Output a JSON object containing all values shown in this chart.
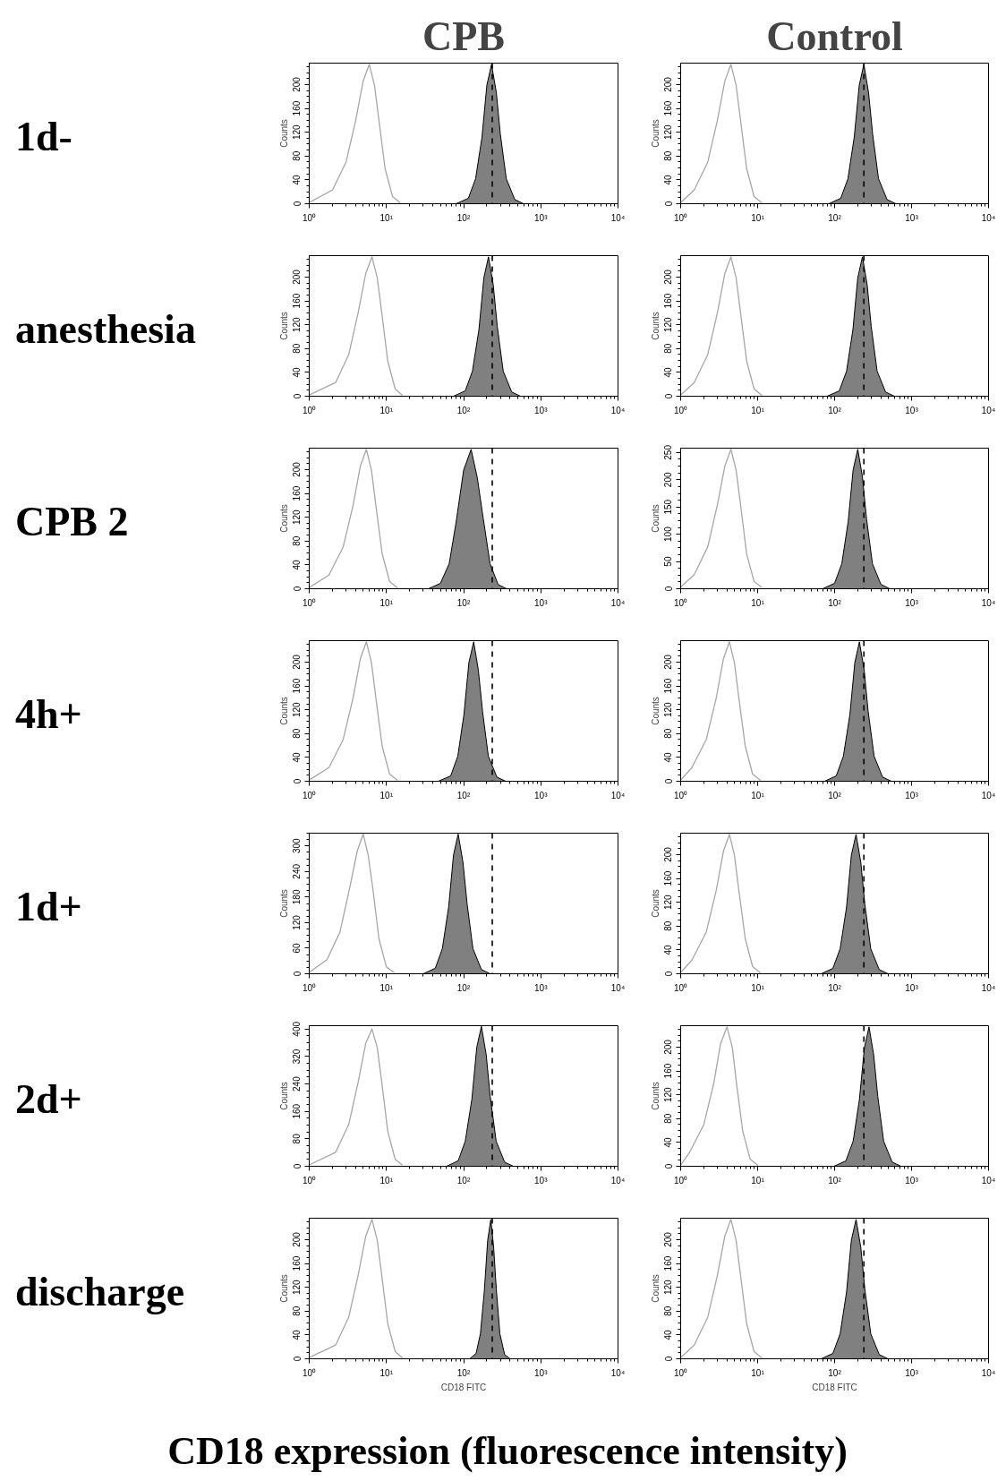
{
  "chart_data": [
    {
      "type": "area",
      "title": "CPB",
      "annotations": [
        "1d-"
      ],
      "ylabel": "Counts",
      "log": "x",
      "grid": false,
      "xlim": [
        1,
        10000
      ],
      "ylim": [
        0,
        236
      ],
      "xticks": [
        {
          "value": 1,
          "label": "10⁰"
        },
        {
          "value": 10,
          "label": "10¹"
        },
        {
          "value": 100,
          "label": "10²"
        },
        {
          "value": 1000,
          "label": "10³"
        },
        {
          "value": 10000,
          "label": "10⁴"
        }
      ],
      "yticks": [
        0,
        40,
        80,
        120,
        160,
        200
      ],
      "ref_lines": [
        {
          "axis": "x",
          "value": 235,
          "line_style": "dashed",
          "color": "#000000"
        }
      ],
      "series": [
        {
          "type": "line",
          "color": "#a6a6a6",
          "x": [
            1,
            2,
            3,
            4,
            5,
            6,
            7,
            8,
            9.6,
            12,
            15
          ],
          "values": [
            2,
            23,
            70,
            140,
            206,
            234,
            199,
            140,
            59,
            12,
            2
          ]
        },
        {
          "color": "#808080",
          "x": [
            80,
            115,
            143,
            173,
            200,
            230,
            265,
            299,
            357,
            460,
            598
          ],
          "values": [
            0,
            9,
            42,
            112,
            199,
            234,
            187,
            117,
            42,
            7,
            0
          ]
        }
      ]
    },
    {
      "type": "area",
      "title": "Control",
      "ylabel": "Counts",
      "log": "x",
      "grid": false,
      "xlim": [
        1,
        10000
      ],
      "ylim": [
        0,
        236
      ],
      "xticks": [
        {
          "value": 1,
          "label": "10⁰"
        },
        {
          "value": 10,
          "label": "10¹"
        },
        {
          "value": 100,
          "label": "10²"
        },
        {
          "value": 1000,
          "label": "10³"
        },
        {
          "value": 10000,
          "label": "10⁴"
        }
      ],
      "yticks": [
        0,
        40,
        80,
        120,
        160,
        200
      ],
      "ref_lines": [
        {
          "axis": "x",
          "value": 240,
          "line_style": "dashed",
          "color": "#000000"
        }
      ],
      "series": [
        {
          "type": "line",
          "color": "#a6a6a6",
          "x": [
            1,
            1.5,
            2.25,
            3,
            3.75,
            4.5,
            5.25,
            6,
            7.2,
            9,
            11.25
          ],
          "values": [
            2,
            23,
            70,
            140,
            206,
            234,
            199,
            140,
            59,
            12,
            2
          ]
        },
        {
          "color": "#808080",
          "x": [
            84,
            120,
            149,
            180,
            209,
            240,
            276,
            312,
            372,
            480,
            624
          ],
          "values": [
            0,
            9,
            42,
            112,
            199,
            234,
            187,
            117,
            42,
            7,
            0
          ]
        }
      ]
    },
    {
      "type": "area",
      "annotations": [
        "anesthesia"
      ],
      "ylabel": "Counts",
      "log": "x",
      "grid": false,
      "xlim": [
        1,
        10000
      ],
      "ylim": [
        0,
        236
      ],
      "xticks": [
        {
          "value": 1,
          "label": "10⁰"
        },
        {
          "value": 10,
          "label": "10¹"
        },
        {
          "value": 100,
          "label": "10²"
        },
        {
          "value": 1000,
          "label": "10³"
        },
        {
          "value": 10000,
          "label": "10⁴"
        }
      ],
      "yticks": [
        0,
        40,
        80,
        120,
        160,
        200
      ],
      "ref_lines": [
        {
          "axis": "x",
          "value": 235,
          "line_style": "dashed",
          "color": "#000000"
        }
      ],
      "series": [
        {
          "type": "line",
          "color": "#a6a6a6",
          "x": [
            1,
            2.2,
            3.25,
            4.3,
            5.4,
            6.5,
            7.6,
            8.7,
            10.4,
            13,
            16
          ],
          "values": [
            2,
            23,
            70,
            140,
            206,
            234,
            199,
            140,
            59,
            12,
            2
          ]
        },
        {
          "color": "#808080",
          "x": [
            74,
            105,
            130,
            158,
            183,
            210,
            242,
            273,
            326,
            420,
            546
          ],
          "values": [
            0,
            9,
            42,
            112,
            199,
            234,
            187,
            117,
            42,
            7,
            0
          ]
        }
      ]
    },
    {
      "type": "area",
      "ylabel": "Counts",
      "log": "x",
      "grid": false,
      "xlim": [
        1,
        10000
      ],
      "ylim": [
        0,
        236
      ],
      "xticks": [
        {
          "value": 1,
          "label": "10⁰"
        },
        {
          "value": 10,
          "label": "10¹"
        },
        {
          "value": 100,
          "label": "10²"
        },
        {
          "value": 1000,
          "label": "10³"
        },
        {
          "value": 10000,
          "label": "10⁴"
        }
      ],
      "yticks": [
        0,
        40,
        80,
        120,
        160,
        200
      ],
      "ref_lines": [
        {
          "axis": "x",
          "value": 240,
          "line_style": "dashed",
          "color": "#000000"
        }
      ],
      "series": [
        {
          "type": "line",
          "color": "#a6a6a6",
          "x": [
            1,
            1.5,
            2.25,
            3,
            3.75,
            4.5,
            5.25,
            6,
            7.2,
            9,
            11.25
          ],
          "values": [
            2,
            23,
            70,
            140,
            206,
            234,
            199,
            140,
            59,
            12,
            2
          ]
        },
        {
          "color": "#808080",
          "x": [
            80,
            115,
            143,
            173,
            200,
            230,
            265,
            299,
            357,
            460,
            598
          ],
          "values": [
            0,
            9,
            42,
            112,
            199,
            234,
            187,
            117,
            42,
            7,
            0
          ]
        }
      ]
    },
    {
      "type": "area",
      "annotations": [
        "CPB 2"
      ],
      "ylabel": "Counts",
      "log": "x",
      "grid": false,
      "xlim": [
        1,
        10000
      ],
      "ylim": [
        0,
        236
      ],
      "xticks": [
        {
          "value": 1,
          "label": "10⁰"
        },
        {
          "value": 10,
          "label": "10¹"
        },
        {
          "value": 100,
          "label": "10²"
        },
        {
          "value": 1000,
          "label": "10³"
        },
        {
          "value": 10000,
          "label": "10⁴"
        }
      ],
      "yticks": [
        0,
        40,
        80,
        120,
        160,
        200
      ],
      "ref_lines": [
        {
          "axis": "x",
          "value": 235,
          "line_style": "dashed",
          "color": "#000000"
        }
      ],
      "series": [
        {
          "type": "line",
          "color": "#a6a6a6",
          "x": [
            1,
            1.8,
            2.75,
            3.7,
            4.6,
            5.5,
            6.4,
            7.3,
            8.8,
            11,
            13.8
          ],
          "values": [
            2,
            23,
            70,
            140,
            206,
            234,
            199,
            140,
            59,
            12,
            2
          ]
        },
        {
          "color": "#808080",
          "x": [
            35,
            50,
            65,
            80,
            100,
            125,
            150,
            180,
            220,
            280,
            360
          ],
          "values": [
            0,
            9,
            42,
            112,
            199,
            234,
            187,
            117,
            42,
            7,
            0
          ]
        }
      ]
    },
    {
      "type": "area",
      "ylabel": "Counts",
      "log": "x",
      "grid": false,
      "xlim": [
        1,
        10000
      ],
      "ylim": [
        0,
        258
      ],
      "xticks": [
        {
          "value": 1,
          "label": "10⁰"
        },
        {
          "value": 10,
          "label": "10¹"
        },
        {
          "value": 100,
          "label": "10²"
        },
        {
          "value": 1000,
          "label": "10³"
        },
        {
          "value": 10000,
          "label": "10⁴"
        }
      ],
      "yticks": [
        0,
        50,
        100,
        150,
        200,
        250
      ],
      "ref_lines": [
        {
          "axis": "x",
          "value": 240,
          "line_style": "dashed",
          "color": "#000000"
        }
      ],
      "series": [
        {
          "type": "line",
          "color": "#a6a6a6",
          "x": [
            1,
            1.5,
            2.25,
            3,
            3.75,
            4.5,
            5.25,
            6,
            7.2,
            9,
            11.25
          ],
          "values": [
            3,
            26,
            77,
            154,
            225,
            256,
            218,
            154,
            64,
            13,
            3
          ]
        },
        {
          "color": "#808080",
          "x": [
            70,
            100,
            124,
            150,
            174,
            200,
            230,
            260,
            310,
            400,
            520
          ],
          "values": [
            0,
            10,
            46,
            123,
            218,
            256,
            205,
            128,
            46,
            8,
            0
          ]
        }
      ]
    },
    {
      "type": "area",
      "annotations": [
        "4h+"
      ],
      "ylabel": "Counts",
      "log": "x",
      "grid": false,
      "xlim": [
        1,
        10000
      ],
      "ylim": [
        0,
        236
      ],
      "xticks": [
        {
          "value": 1,
          "label": "10⁰"
        },
        {
          "value": 10,
          "label": "10¹"
        },
        {
          "value": 100,
          "label": "10²"
        },
        {
          "value": 1000,
          "label": "10³"
        },
        {
          "value": 10000,
          "label": "10⁴"
        }
      ],
      "yticks": [
        0,
        40,
        80,
        120,
        160,
        200
      ],
      "ref_lines": [
        {
          "axis": "x",
          "value": 235,
          "line_style": "dashed",
          "color": "#000000"
        }
      ],
      "series": [
        {
          "type": "line",
          "color": "#a6a6a6",
          "x": [
            1,
            1.8,
            2.75,
            3.7,
            4.6,
            5.5,
            6.4,
            7.3,
            8.8,
            11,
            13.8
          ],
          "values": [
            2,
            23,
            70,
            140,
            206,
            234,
            199,
            140,
            59,
            12,
            2
          ]
        },
        {
          "color": "#808080",
          "x": [
            47,
            68,
            84,
            101,
            117,
            135,
            155,
            176,
            209,
            270,
            351
          ],
          "values": [
            0,
            9,
            42,
            112,
            199,
            234,
            187,
            117,
            42,
            7,
            0
          ]
        }
      ]
    },
    {
      "type": "area",
      "ylabel": "Counts",
      "log": "x",
      "grid": false,
      "xlim": [
        1,
        10000
      ],
      "ylim": [
        0,
        236
      ],
      "xticks": [
        {
          "value": 1,
          "label": "10⁰"
        },
        {
          "value": 10,
          "label": "10¹"
        },
        {
          "value": 100,
          "label": "10²"
        },
        {
          "value": 1000,
          "label": "10³"
        },
        {
          "value": 10000,
          "label": "10⁴"
        }
      ],
      "yticks": [
        0,
        40,
        80,
        120,
        160,
        200
      ],
      "ref_lines": [
        {
          "axis": "x",
          "value": 240,
          "line_style": "dashed",
          "color": "#000000"
        }
      ],
      "series": [
        {
          "type": "line",
          "color": "#a6a6a6",
          "x": [
            1,
            1.4,
            2.15,
            2.9,
            3.6,
            4.3,
            5,
            5.7,
            6.9,
            8.6,
            10.8
          ],
          "values": [
            2,
            23,
            70,
            140,
            206,
            234,
            199,
            140,
            59,
            12,
            2
          ]
        },
        {
          "color": "#808080",
          "x": [
            74,
            105,
            130,
            158,
            183,
            210,
            242,
            273,
            326,
            420,
            546
          ],
          "values": [
            0,
            9,
            42,
            112,
            199,
            234,
            187,
            117,
            42,
            7,
            0
          ]
        }
      ]
    },
    {
      "type": "area",
      "annotations": [
        "1d+"
      ],
      "ylabel": "Counts",
      "log": "x",
      "grid": false,
      "xlim": [
        1,
        10000
      ],
      "ylim": [
        0,
        330
      ],
      "xticks": [
        {
          "value": 1,
          "label": "10⁰"
        },
        {
          "value": 10,
          "label": "10¹"
        },
        {
          "value": 100,
          "label": "10²"
        },
        {
          "value": 1000,
          "label": "10³"
        },
        {
          "value": 10000,
          "label": "10⁴"
        }
      ],
      "yticks": [
        0,
        60,
        120,
        180,
        240,
        300
      ],
      "ref_lines": [
        {
          "axis": "x",
          "value": 235,
          "line_style": "dashed",
          "color": "#000000"
        }
      ],
      "series": [
        {
          "type": "line",
          "color": "#a6a6a6",
          "x": [
            1,
            1.7,
            2.5,
            3.3,
            4.2,
            5,
            5.8,
            6.7,
            8,
            10,
            12.5
          ],
          "values": [
            3,
            33,
            98,
            197,
            289,
            328,
            279,
            197,
            82,
            16,
            3
          ]
        },
        {
          "color": "#808080",
          "x": [
            30,
            43,
            53,
            64,
            74,
            85,
            98,
            111,
            132,
            170,
            221
          ],
          "values": [
            0,
            13,
            59,
            157,
            279,
            328,
            262,
            164,
            59,
            10,
            0
          ]
        }
      ]
    },
    {
      "type": "area",
      "ylabel": "Counts",
      "log": "x",
      "grid": false,
      "xlim": [
        1,
        10000
      ],
      "ylim": [
        0,
        236
      ],
      "xticks": [
        {
          "value": 1,
          "label": "10⁰"
        },
        {
          "value": 10,
          "label": "10¹"
        },
        {
          "value": 100,
          "label": "10²"
        },
        {
          "value": 1000,
          "label": "10³"
        },
        {
          "value": 10000,
          "label": "10⁴"
        }
      ],
      "yticks": [
        0,
        40,
        80,
        120,
        160,
        200
      ],
      "ref_lines": [
        {
          "axis": "x",
          "value": 240,
          "line_style": "dashed",
          "color": "#000000"
        }
      ],
      "series": [
        {
          "type": "line",
          "color": "#a6a6a6",
          "x": [
            1,
            1.4,
            2.15,
            2.9,
            3.6,
            4.3,
            5,
            5.7,
            6.9,
            8.6,
            10.8
          ],
          "values": [
            2,
            23,
            70,
            140,
            206,
            234,
            199,
            140,
            59,
            12,
            2
          ]
        },
        {
          "color": "#808080",
          "x": [
            67,
            95,
            118,
            143,
            165,
            190,
            219,
            247,
            295,
            380,
            494
          ],
          "values": [
            0,
            9,
            42,
            112,
            199,
            234,
            187,
            117,
            42,
            7,
            0
          ]
        }
      ]
    },
    {
      "type": "area",
      "annotations": [
        "2d+"
      ],
      "ylabel": "Counts",
      "log": "x",
      "grid": false,
      "xlim": [
        1,
        10000
      ],
      "ylim": [
        0,
        410
      ],
      "xticks": [
        {
          "value": 1,
          "label": "10⁰"
        },
        {
          "value": 10,
          "label": "10¹"
        },
        {
          "value": 100,
          "label": "10²"
        },
        {
          "value": 1000,
          "label": "10³"
        },
        {
          "value": 10000,
          "label": "10⁴"
        }
      ],
      "yticks": [
        0,
        80,
        160,
        240,
        320,
        400
      ],
      "ref_lines": [
        {
          "axis": "x",
          "value": 235,
          "line_style": "dashed",
          "color": "#000000"
        }
      ],
      "series": [
        {
          "type": "line",
          "color": "#a6a6a6",
          "x": [
            1,
            2.2,
            3.25,
            4.3,
            5.4,
            6.5,
            7.6,
            8.7,
            10.4,
            13,
            16
          ],
          "values": [
            4,
            41,
            122,
            245,
            359,
            400,
            347,
            245,
            102,
            20,
            4
          ]
        },
        {
          "color": "#808080",
          "x": [
            60,
            85,
            105,
            128,
            148,
            170,
            196,
            221,
            264,
            340,
            442
          ],
          "values": [
            0,
            16,
            73,
            196,
            347,
            408,
            326,
            204,
            73,
            12,
            0
          ]
        }
      ]
    },
    {
      "type": "area",
      "ylabel": "Counts",
      "log": "x",
      "grid": false,
      "xlim": [
        1,
        10000
      ],
      "ylim": [
        0,
        236
      ],
      "xticks": [
        {
          "value": 1,
          "label": "10⁰"
        },
        {
          "value": 10,
          "label": "10¹"
        },
        {
          "value": 100,
          "label": "10²"
        },
        {
          "value": 1000,
          "label": "10³"
        },
        {
          "value": 10000,
          "label": "10⁴"
        }
      ],
      "yticks": [
        0,
        40,
        80,
        120,
        160,
        200
      ],
      "ref_lines": [
        {
          "axis": "x",
          "value": 240,
          "line_style": "dashed",
          "color": "#000000"
        }
      ],
      "series": [
        {
          "type": "line",
          "color": "#a6a6a6",
          "x": [
            1,
            1.3,
            2,
            2.7,
            3.3,
            4,
            4.7,
            5.3,
            6.4,
            8,
            10
          ],
          "values": [
            2,
            23,
            70,
            140,
            206,
            234,
            199,
            140,
            59,
            12,
            2
          ]
        },
        {
          "color": "#808080",
          "x": [
            98,
            140,
            174,
            210,
            244,
            280,
            322,
            364,
            434,
            560,
            728
          ],
          "values": [
            0,
            9,
            42,
            112,
            199,
            234,
            187,
            117,
            42,
            7,
            0
          ]
        }
      ]
    },
    {
      "type": "area",
      "annotations": [
        "discharge",
        "CD18 expression (fluorescence intensity)"
      ],
      "xlabel": "CD18 FITC",
      "ylabel": "Counts",
      "log": "x",
      "grid": false,
      "xlim": [
        1,
        10000
      ],
      "ylim": [
        0,
        236
      ],
      "xticks": [
        {
          "value": 1,
          "label": "10⁰"
        },
        {
          "value": 10,
          "label": "10¹"
        },
        {
          "value": 100,
          "label": "10²"
        },
        {
          "value": 1000,
          "label": "10³"
        },
        {
          "value": 10000,
          "label": "10⁴"
        }
      ],
      "yticks": [
        0,
        40,
        80,
        120,
        160,
        200
      ],
      "ref_lines": [
        {
          "axis": "x",
          "value": 235,
          "line_style": "dashed",
          "color": "#000000"
        }
      ],
      "series": [
        {
          "type": "line",
          "color": "#a6a6a6",
          "x": [
            1,
            2.2,
            3.25,
            4.3,
            5.4,
            6.5,
            7.6,
            8.7,
            10.4,
            13,
            16
          ],
          "values": [
            2,
            23,
            70,
            140,
            206,
            234,
            199,
            140,
            59,
            12,
            2
          ]
        },
        {
          "color": "#808080",
          "x": [
            120,
            145,
            165,
            185,
            205,
            225,
            245,
            265,
            295,
            340,
            400
          ],
          "values": [
            0,
            9,
            42,
            112,
            199,
            234,
            187,
            117,
            42,
            7,
            0
          ]
        }
      ]
    },
    {
      "type": "area",
      "xlabel": "CD18 FITC",
      "ylabel": "Counts",
      "log": "x",
      "grid": false,
      "xlim": [
        1,
        10000
      ],
      "ylim": [
        0,
        236
      ],
      "xticks": [
        {
          "value": 1,
          "label": "10⁰"
        },
        {
          "value": 10,
          "label": "10¹"
        },
        {
          "value": 100,
          "label": "10²"
        },
        {
          "value": 1000,
          "label": "10³"
        },
        {
          "value": 10000,
          "label": "10⁴"
        }
      ],
      "yticks": [
        0,
        40,
        80,
        120,
        160,
        200
      ],
      "ref_lines": [
        {
          "axis": "x",
          "value": 240,
          "line_style": "dashed",
          "color": "#000000"
        }
      ],
      "series": [
        {
          "type": "line",
          "color": "#a6a6a6",
          "x": [
            1,
            1.5,
            2.25,
            3,
            3.75,
            4.5,
            5.25,
            6,
            7.2,
            9,
            11.25
          ],
          "values": [
            2,
            23,
            70,
            140,
            206,
            234,
            199,
            140,
            59,
            12,
            2
          ]
        },
        {
          "color": "#808080",
          "x": [
            67,
            95,
            118,
            143,
            165,
            190,
            219,
            247,
            295,
            380,
            494
          ],
          "values": [
            0,
            9,
            42,
            112,
            199,
            234,
            187,
            117,
            42,
            7,
            0
          ]
        }
      ]
    }
  ]
}
